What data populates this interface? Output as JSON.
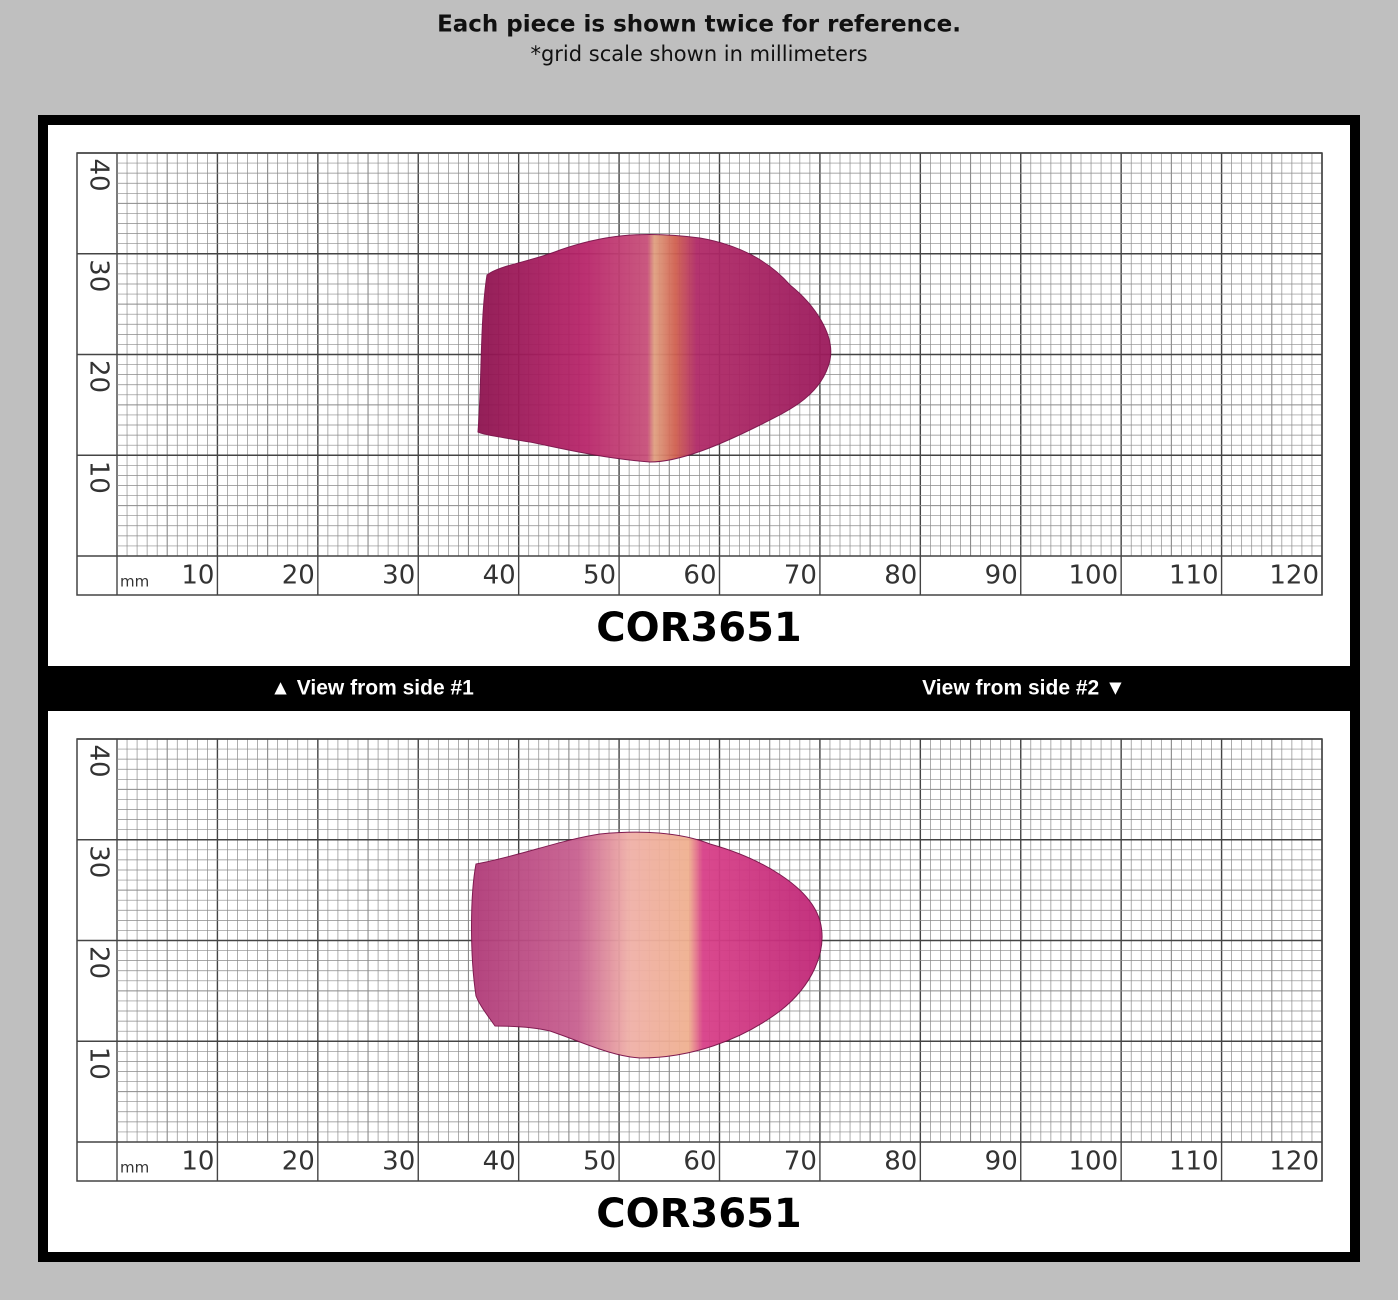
{
  "header": {
    "title": "Each piece is shown twice for reference.",
    "subtitle": "*grid scale shown in millimeters"
  },
  "panels": [
    {
      "unit": "mm",
      "x_labels": [
        "10",
        "20",
        "30",
        "40",
        "50",
        "60",
        "70",
        "80",
        "90",
        "100",
        "110",
        "120"
      ],
      "y_labels": [
        "10",
        "20",
        "30",
        "40"
      ],
      "code": "COR3651"
    },
    {
      "unit": "mm",
      "x_labels": [
        "10",
        "20",
        "30",
        "40",
        "50",
        "60",
        "70",
        "80",
        "90",
        "100",
        "110",
        "120"
      ],
      "y_labels": [
        "10",
        "20",
        "30",
        "40"
      ],
      "code": "COR3651"
    }
  ],
  "divider": {
    "left": "▲ View from side #1",
    "right": "View from side #2 ▼"
  }
}
